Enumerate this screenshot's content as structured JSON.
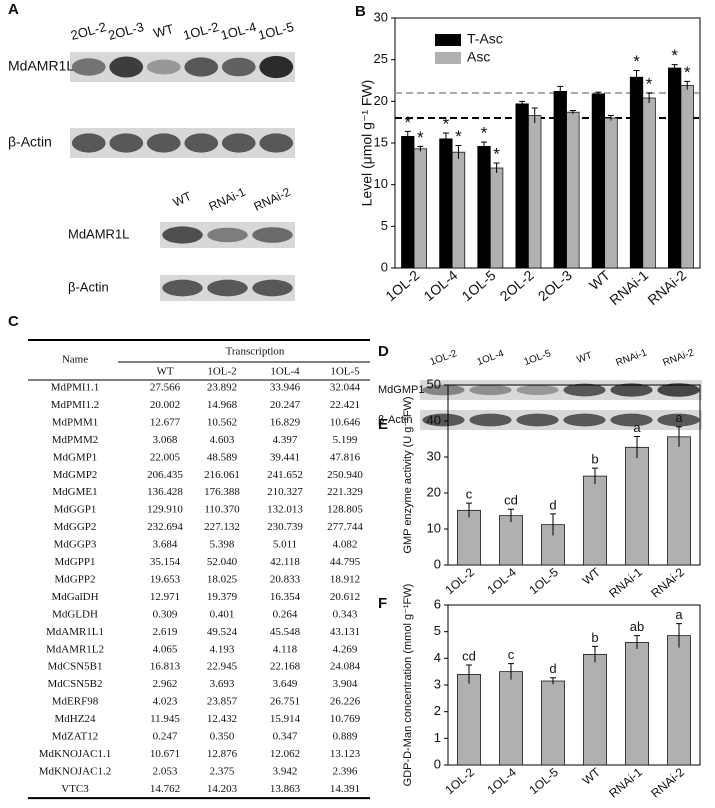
{
  "panel_labels": [
    "A",
    "B",
    "C",
    "D",
    "E",
    "F"
  ],
  "blots": [
    {
      "lanes": [
        "2OL-2",
        "2OL-3",
        "WT",
        "1OL-2",
        "1OL-4",
        "1OL-5"
      ],
      "rows": [
        "MdAMR1L",
        "β-Actin"
      ]
    },
    {
      "lanes": [
        "WT",
        "RNAi-1",
        "RNAi-2"
      ],
      "rows": [
        "MdAMR1L",
        "β-Actin"
      ]
    },
    {
      "lanes": [
        "1OL-2",
        "1OL-4",
        "1OL-5",
        "WT",
        "RNAi-1",
        "RNAi-2"
      ],
      "rows": [
        "MdGMP1",
        "β-Actin"
      ]
    }
  ],
  "table": {
    "name_header": "Name",
    "group_header": "Transcription",
    "columns": [
      "WT",
      "1OL-2",
      "1OL-4",
      "1OL-5"
    ],
    "rows": [
      [
        "MdPMI1.1",
        "27.566",
        "23.892",
        "33.946",
        "32.044"
      ],
      [
        "MdPMI1.2",
        "20.002",
        "14.968",
        "20.247",
        "22.421"
      ],
      [
        "MdPMM1",
        "12.677",
        "10.562",
        "16.829",
        "10.646"
      ],
      [
        "MdPMM2",
        "3.068",
        "4.603",
        "4.397",
        "5.199"
      ],
      [
        "MdGMP1",
        "22.005",
        "48.589",
        "39.441",
        "47.816"
      ],
      [
        "MdGMP2",
        "206.435",
        "216.061",
        "241.652",
        "250.940"
      ],
      [
        "MdGME1",
        "136.428",
        "176.388",
        "210.327",
        "221.329"
      ],
      [
        "MdGGP1",
        "129.910",
        "110.370",
        "132.013",
        "128.805"
      ],
      [
        "MdGGP2",
        "232.694",
        "227.132",
        "230.739",
        "277.744"
      ],
      [
        "MdGGP3",
        "3.684",
        "5.398",
        "5.011",
        "4.082"
      ],
      [
        "MdGPP1",
        "35.154",
        "52.040",
        "42.118",
        "44.795"
      ],
      [
        "MdGPP2",
        "19.653",
        "18.025",
        "20.833",
        "18.912"
      ],
      [
        "MdGalDH",
        "12.971",
        "19.379",
        "16.354",
        "20.612"
      ],
      [
        "MdGLDH",
        "0.309",
        "0.401",
        "0.264",
        "0.343"
      ],
      [
        "MdAMR1L1",
        "2.619",
        "49.524",
        "45.548",
        "43.131"
      ],
      [
        "MdAMR1L2",
        "4.065",
        "4.193",
        "4.118",
        "4.269"
      ],
      [
        "MdCSN5B1",
        "16.813",
        "22.945",
        "22.168",
        "24.084"
      ],
      [
        "MdCSN5B2",
        "2.962",
        "3.693",
        "3.649",
        "3.904"
      ],
      [
        "MdERF98",
        "4.023",
        "23.857",
        "26.751",
        "26.226"
      ],
      [
        "MdHZ24",
        "11.945",
        "12.432",
        "15.914",
        "10.769"
      ],
      [
        "MdZAT12",
        "0.247",
        "0.350",
        "0.347",
        "0.889"
      ],
      [
        "MdKNOJAC1.1",
        "10.671",
        "12.876",
        "12.062",
        "13.123"
      ],
      [
        "MdKNOJAC1.2",
        "2.053",
        "2.375",
        "3.942",
        "2.396"
      ],
      [
        "VTC3",
        "14.762",
        "14.203",
        "13.863",
        "14.391"
      ]
    ]
  },
  "chart_data": [
    {
      "type": "bar",
      "ylabel": "Level (μmol g⁻¹ FW)",
      "categories": [
        "1OL-2",
        "1OL-4",
        "1OL-5",
        "2OL-2",
        "2OL-3",
        "WT",
        "RNAi-1",
        "RNAi-2"
      ],
      "series": [
        {
          "name": "T-Asc",
          "color": "#000000",
          "values": [
            15.8,
            15.5,
            14.6,
            19.7,
            21.2,
            20.9,
            22.9,
            24.0
          ],
          "errors": [
            0.6,
            0.7,
            0.5,
            0.3,
            0.6,
            0.2,
            0.8,
            0.4
          ],
          "markers": [
            "*",
            "*",
            "*",
            null,
            null,
            null,
            "*",
            "*"
          ]
        },
        {
          "name": "Asc",
          "color": "#b0b0b0",
          "values": [
            14.3,
            13.9,
            12.0,
            18.3,
            18.7,
            18.0,
            20.4,
            21.9
          ],
          "errors": [
            0.3,
            0.8,
            0.6,
            0.9,
            0.2,
            0.3,
            0.6,
            0.5
          ],
          "markers": [
            "*",
            "*",
            "*",
            null,
            null,
            null,
            "*",
            "*"
          ]
        }
      ],
      "reference_lines": [
        {
          "value": 18,
          "color": "#000000"
        },
        {
          "value": 21,
          "color": "#aaaaaa"
        }
      ],
      "ylim": [
        0,
        30
      ],
      "yticks": [
        0,
        5,
        10,
        15,
        20,
        25,
        30
      ],
      "legend": "top-left"
    },
    {
      "type": "bar",
      "ylabel": "GMP enzyme activity (U g⁻¹FW)",
      "categories": [
        "1OL-2",
        "1OL-4",
        "1OL-5",
        "WT",
        "RNAi-1",
        "RNAi-2"
      ],
      "series": [
        {
          "color": "#b0b0b0",
          "values": [
            15.2,
            13.7,
            11.2,
            24.7,
            32.7,
            35.6
          ],
          "errors": [
            2.0,
            1.8,
            3.0,
            2.2,
            3.0,
            2.8
          ],
          "markers": [
            "c",
            "cd",
            "d",
            "b",
            "a",
            "a"
          ]
        }
      ],
      "ylim": [
        0,
        50
      ],
      "yticks": [
        0,
        10,
        20,
        30,
        40,
        50
      ]
    },
    {
      "type": "bar",
      "ylabel": "GDP-D-Man concentration (mmol g⁻¹FW)",
      "categories": [
        "1OL-2",
        "1OL-4",
        "1OL-5",
        "WT",
        "RNAi-1",
        "RNAi-2"
      ],
      "series": [
        {
          "color": "#b0b0b0",
          "values": [
            3.4,
            3.5,
            3.15,
            4.15,
            4.6,
            4.85
          ],
          "errors": [
            0.35,
            0.3,
            0.12,
            0.3,
            0.25,
            0.45
          ],
          "markers": [
            "cd",
            "c",
            "d",
            "b",
            "ab",
            "a"
          ]
        }
      ],
      "ylim": [
        0,
        6
      ],
      "yticks": [
        0,
        1,
        2,
        3,
        4,
        5,
        6
      ]
    }
  ]
}
